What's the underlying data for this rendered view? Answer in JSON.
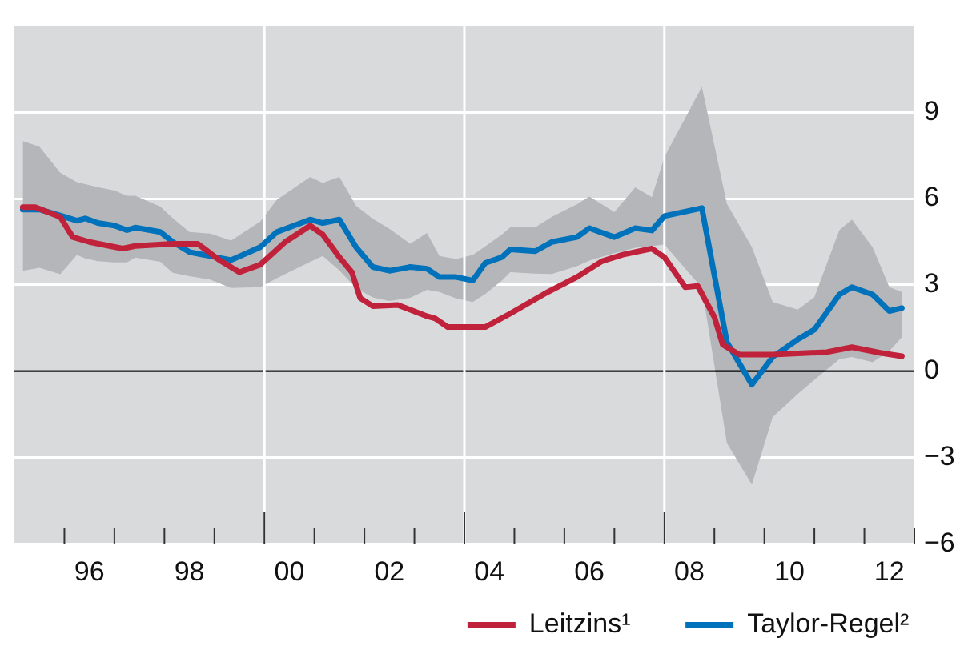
{
  "chart_data": {
    "type": "line",
    "xlim": [
      "1995-01",
      "2013-01"
    ],
    "xticks": [
      {
        "value": "1996-01",
        "label": null
      },
      {
        "value": "1997-01",
        "label": null
      },
      {
        "value": "1998-01",
        "label": null
      },
      {
        "value": "1999-01",
        "label": null
      },
      {
        "value": "2000-01",
        "label": null
      },
      {
        "value": "2001-01",
        "label": null
      },
      {
        "value": "2002-01",
        "label": null
      },
      {
        "value": "2003-01",
        "label": null
      },
      {
        "value": "2004-01",
        "label": null
      },
      {
        "value": "2005-01",
        "label": null
      },
      {
        "value": "2006-01",
        "label": null
      },
      {
        "value": "2007-01",
        "label": null
      },
      {
        "value": "2008-01",
        "label": null
      },
      {
        "value": "2009-01",
        "label": null
      },
      {
        "value": "2010-01",
        "label": null
      },
      {
        "value": "2011-01",
        "label": null
      },
      {
        "value": "2012-01",
        "label": null
      },
      {
        "value": "2013-01",
        "label": null
      },
      {
        "value": "1996-07",
        "label": "96"
      },
      {
        "value": "1998-07",
        "label": "98"
      },
      {
        "value": "2000-07",
        "label": "00"
      },
      {
        "value": "2002-07",
        "label": "02"
      },
      {
        "value": "2004-07",
        "label": "04"
      },
      {
        "value": "2006-07",
        "label": "06"
      },
      {
        "value": "2008-07",
        "label": "08"
      },
      {
        "value": "2010-07",
        "label": "10"
      },
      {
        "value": "2012-07",
        "label": "12"
      }
    ],
    "ylim": [
      -6,
      12
    ],
    "yticks": [
      {
        "value": -6,
        "label": "−6"
      },
      {
        "value": -3,
        "label": "−3"
      },
      0,
      3,
      6,
      9
    ],
    "grid": "y",
    "legend": "bottom right",
    "marker": "none",
    "line_style": "solid",
    "ref_lines": [
      {
        "axis": "y",
        "value": 0,
        "color": "#000000"
      },
      {
        "axis": "x",
        "value": "2000-01",
        "color": "#ffffff"
      },
      {
        "axis": "x",
        "value": "2004-01",
        "color": "#ffffff"
      },
      {
        "axis": "x",
        "value": "2008-01",
        "color": "#ffffff"
      }
    ],
    "series": [
      {
        "name": "Leitzins¹",
        "color": "#c0223b",
        "x": [
          "1995-03",
          "1995-06",
          "1995-12",
          "1996-03",
          "1996-07",
          "1997-03",
          "1997-06",
          "1998-03",
          "1998-09",
          "1999-02",
          "1999-07",
          "1999-12",
          "2000-06",
          "2000-12",
          "2001-03",
          "2001-07",
          "2001-10",
          "2001-12",
          "2002-03",
          "2002-09",
          "2003-04",
          "2003-06",
          "2003-09",
          "2004-06",
          "2004-12",
          "2005-09",
          "2006-04",
          "2006-10",
          "2007-03",
          "2007-10",
          "2008-01",
          "2008-06",
          "2008-09",
          "2009-01",
          "2009-03",
          "2009-07",
          "2010-03",
          "2011-04",
          "2011-10",
          "2012-05",
          "2012-10"
        ],
        "values": [
          5.7,
          5.7,
          5.36,
          4.66,
          4.49,
          4.26,
          4.35,
          4.43,
          4.43,
          3.88,
          3.44,
          3.7,
          4.49,
          5.06,
          4.75,
          3.96,
          3.44,
          2.54,
          2.26,
          2.3,
          1.91,
          1.83,
          1.53,
          1.53,
          2.0,
          2.75,
          3.27,
          3.82,
          4.05,
          4.26,
          3.96,
          2.92,
          2.96,
          1.88,
          0.92,
          0.57,
          0.57,
          0.66,
          0.83,
          0.63,
          0.52
        ]
      },
      {
        "name": "Taylor-Regel²",
        "color": "#0072bc",
        "x": [
          "1995-03",
          "1995-07",
          "1995-12",
          "1996-04",
          "1996-06",
          "1996-09",
          "1997-01",
          "1997-04",
          "1997-06",
          "1997-12",
          "1998-03",
          "1998-07",
          "1998-12",
          "1999-05",
          "1999-12",
          "2000-04",
          "2000-12",
          "2001-03",
          "2001-07",
          "2001-11",
          "2002-03",
          "2002-07",
          "2002-12",
          "2003-04",
          "2003-07",
          "2003-11",
          "2004-03",
          "2004-06",
          "2004-10",
          "2004-12",
          "2005-06",
          "2005-10",
          "2006-04",
          "2006-07",
          "2007-01",
          "2007-06",
          "2007-10",
          "2008-01",
          "2008-10",
          "2009-04",
          "2009-10",
          "2010-03",
          "2010-09",
          "2011-01",
          "2011-07",
          "2011-10",
          "2012-03",
          "2012-07",
          "2012-10"
        ],
        "values": [
          5.62,
          5.62,
          5.41,
          5.23,
          5.31,
          5.15,
          5.06,
          4.9,
          4.99,
          4.84,
          4.49,
          4.14,
          4.0,
          3.86,
          4.31,
          4.84,
          5.27,
          5.15,
          5.27,
          4.31,
          3.62,
          3.49,
          3.62,
          3.56,
          3.27,
          3.27,
          3.15,
          3.76,
          3.96,
          4.23,
          4.17,
          4.49,
          4.66,
          4.97,
          4.66,
          4.97,
          4.89,
          5.39,
          5.67,
          1.01,
          -0.47,
          0.49,
          1.1,
          1.44,
          2.66,
          2.92,
          2.66,
          2.09,
          2.19
        ],
        "upper": [
          8.0,
          7.8,
          6.9,
          6.57,
          6.5,
          6.4,
          6.28,
          6.1,
          6.1,
          5.72,
          5.32,
          4.84,
          4.78,
          4.54,
          5.2,
          5.96,
          6.75,
          6.54,
          6.75,
          5.75,
          5.3,
          4.95,
          4.43,
          4.8,
          4.0,
          3.9,
          4.04,
          4.34,
          4.75,
          5.0,
          5.0,
          5.37,
          5.8,
          6.07,
          5.53,
          6.39,
          6.05,
          7.44,
          9.88,
          5.82,
          4.31,
          2.4,
          2.14,
          2.57,
          4.9,
          5.27,
          4.3,
          2.92,
          2.75
        ],
        "lower": [
          3.49,
          3.59,
          3.37,
          4.04,
          3.92,
          3.82,
          3.78,
          3.78,
          3.95,
          3.8,
          3.42,
          3.3,
          3.18,
          2.89,
          2.92,
          3.23,
          3.8,
          4.0,
          3.5,
          2.88,
          2.56,
          2.44,
          2.55,
          2.83,
          2.75,
          2.53,
          2.4,
          2.68,
          3.15,
          3.44,
          3.39,
          3.38,
          3.65,
          3.84,
          4.1,
          4.29,
          4.35,
          4.4,
          2.9,
          -2.5,
          -3.95,
          -1.6,
          -0.8,
          -0.3,
          0.41,
          0.49,
          0.31,
          0.7,
          1.18
        ]
      }
    ]
  }
}
